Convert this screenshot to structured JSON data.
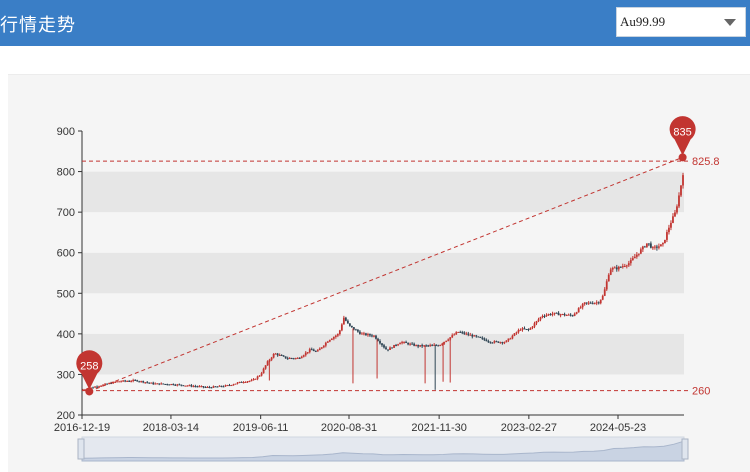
{
  "header": {
    "title": "行情走势",
    "select": {
      "value": "Au99.99"
    }
  },
  "colors": {
    "header_bg": "#3a7ec6",
    "up": "#c23531",
    "down": "#2f4554",
    "band": "#e6e6e6",
    "panel": "#f5f5f5",
    "annotation": "#c23531"
  },
  "icons": {
    "dropdown": "chevron-down-icon"
  },
  "chart_data": {
    "type": "candlestick",
    "title": "",
    "xlabel": "",
    "ylabel": "",
    "ylim": [
      200,
      900
    ],
    "yticks": [
      200,
      300,
      400,
      500,
      600,
      700,
      800,
      900
    ],
    "xticks": [
      "2016-12-19",
      "2018-03-14",
      "2019-06-11",
      "2020-08-31",
      "2021-11-30",
      "2023-02-27",
      "2024-05-23"
    ],
    "xrange": [
      "2016-12-19",
      "2025-04-22"
    ],
    "grid": "alternating horizontal bands",
    "data_zoom_slider": true,
    "trend_path": [
      [
        "2016-12-19",
        262
      ],
      [
        "2017-03-15",
        272
      ],
      [
        "2017-06-20",
        283
      ],
      [
        "2017-09-20",
        285
      ],
      [
        "2017-12-20",
        277
      ],
      [
        "2018-03-14",
        276
      ],
      [
        "2018-06-20",
        272
      ],
      [
        "2018-09-20",
        268
      ],
      [
        "2018-12-20",
        272
      ],
      [
        "2019-03-10",
        282
      ],
      [
        "2019-05-01",
        285
      ],
      [
        "2019-06-11",
        300
      ],
      [
        "2019-07-15",
        330
      ],
      [
        "2019-08-20",
        352
      ],
      [
        "2019-10-20",
        340
      ],
      [
        "2019-12-20",
        340
      ],
      [
        "2020-02-20",
        362
      ],
      [
        "2020-03-20",
        355
      ],
      [
        "2020-05-20",
        385
      ],
      [
        "2020-07-10",
        400
      ],
      [
        "2020-08-05",
        440
      ],
      [
        "2020-08-31",
        420
      ],
      [
        "2020-11-01",
        400
      ],
      [
        "2021-01-05",
        395
      ],
      [
        "2021-03-10",
        360
      ],
      [
        "2021-05-20",
        380
      ],
      [
        "2021-08-15",
        370
      ],
      [
        "2021-11-30",
        372
      ],
      [
        "2022-03-05",
        405
      ],
      [
        "2022-05-20",
        395
      ],
      [
        "2022-08-20",
        380
      ],
      [
        "2022-11-01",
        380
      ],
      [
        "2023-01-15",
        412
      ],
      [
        "2023-02-27",
        410
      ],
      [
        "2023-05-05",
        445
      ],
      [
        "2023-07-01",
        450
      ],
      [
        "2023-10-05",
        445
      ],
      [
        "2023-12-05",
        475
      ],
      [
        "2024-02-15",
        478
      ],
      [
        "2024-03-10",
        495
      ],
      [
        "2024-04-12",
        560
      ],
      [
        "2024-05-23",
        562
      ],
      [
        "2024-07-20",
        575
      ],
      [
        "2024-10-20",
        625
      ],
      [
        "2024-11-15",
        610
      ],
      [
        "2025-01-05",
        620
      ],
      [
        "2025-02-10",
        670
      ],
      [
        "2025-03-10",
        700
      ],
      [
        "2025-04-05",
        760
      ],
      [
        "2025-04-15",
        800
      ],
      [
        "2025-04-22",
        785
      ]
    ],
    "spikes": [
      {
        "date": "2019-07-25",
        "low": 285
      },
      {
        "date": "2020-09-20",
        "low": 278
      },
      {
        "date": "2021-01-20",
        "low": 290
      },
      {
        "date": "2021-09-20",
        "low": 278
      },
      {
        "date": "2021-11-10",
        "low": 262
      },
      {
        "date": "2021-12-20",
        "low": 282
      },
      {
        "date": "2022-01-25",
        "low": 280
      }
    ],
    "mark_points": [
      {
        "name": "min",
        "date": "2017-01-25",
        "value": 258,
        "label": "258"
      },
      {
        "name": "max",
        "date": "2025-04-15",
        "value": 835,
        "label": "835"
      }
    ],
    "mark_lines": [
      {
        "type": "horizontal",
        "value": 825.8,
        "label": "825.8"
      },
      {
        "type": "horizontal",
        "value": 260,
        "label": "260"
      },
      {
        "type": "trend",
        "from": [
          "2017-01-25",
          258
        ],
        "to": [
          "2025-04-15",
          835
        ]
      }
    ]
  }
}
